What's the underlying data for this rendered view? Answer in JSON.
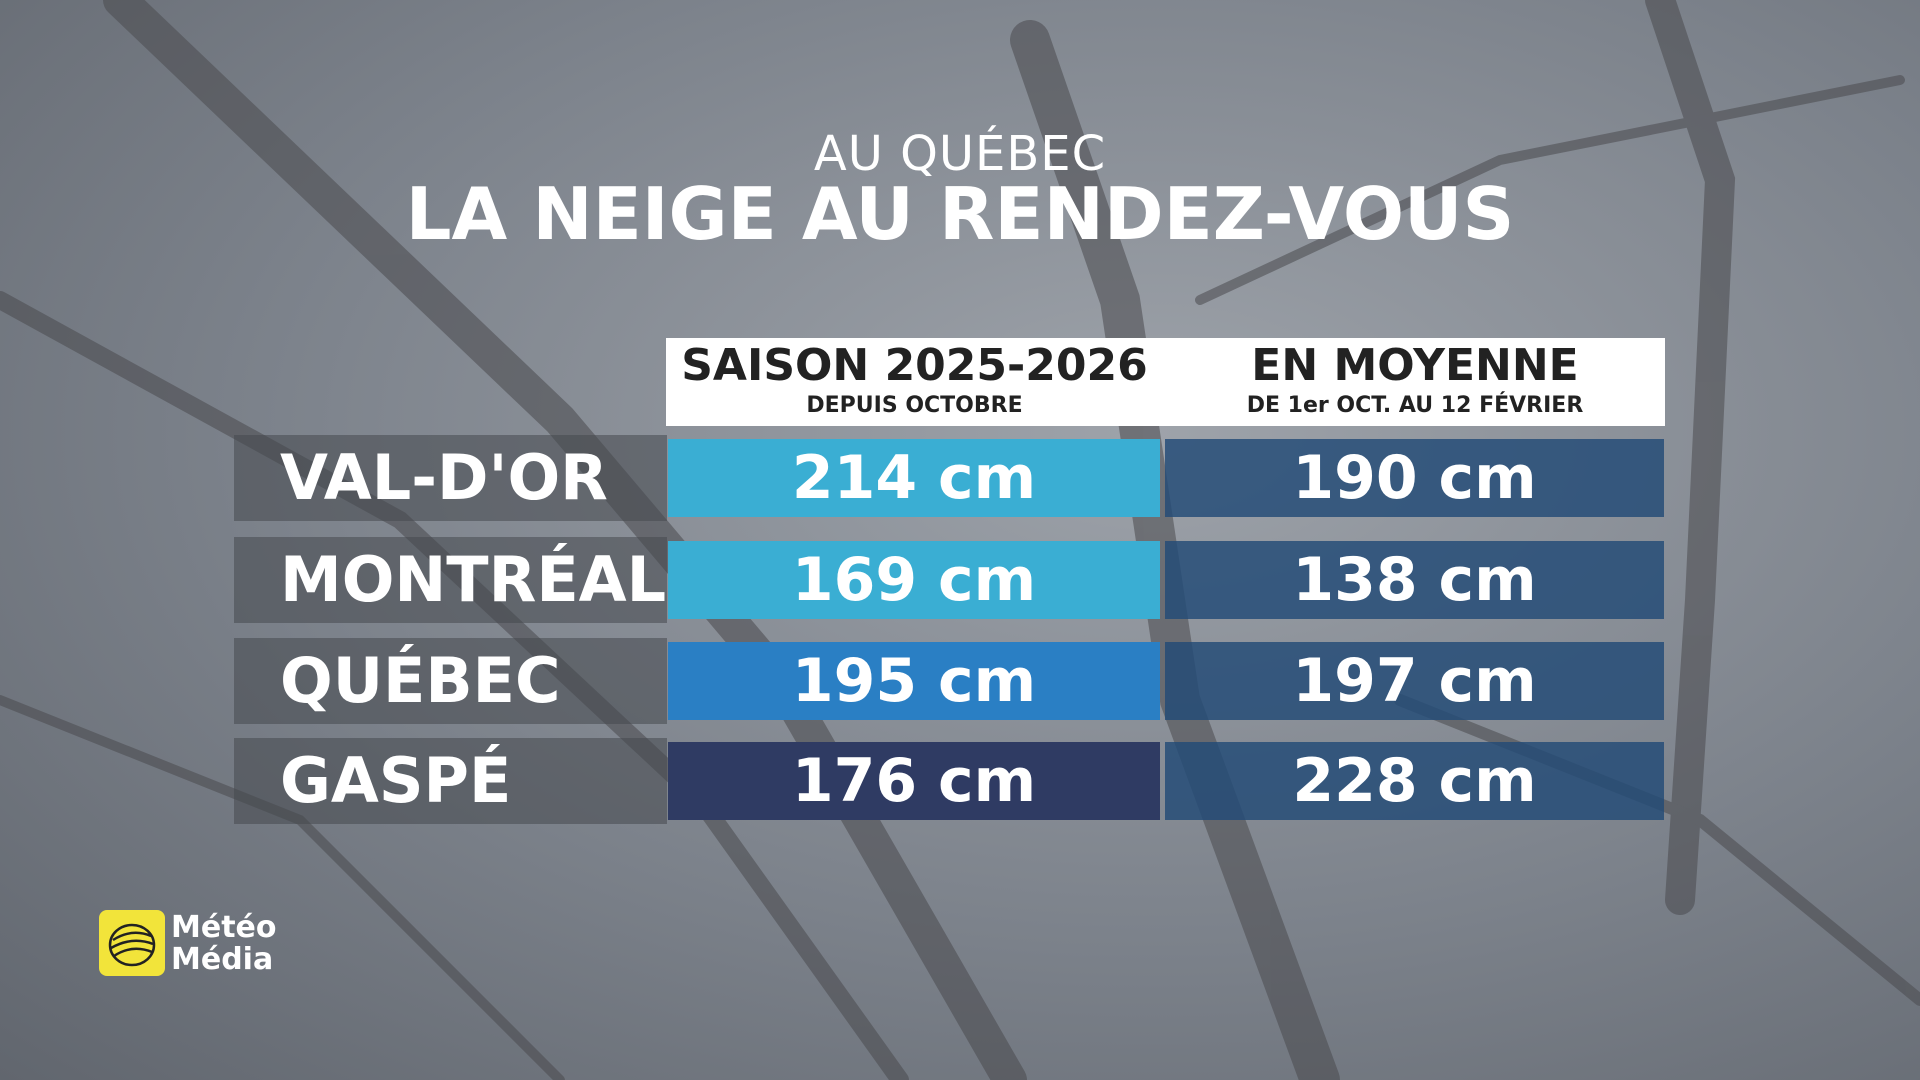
{
  "header": {
    "subtitle": "AU QUÉBEC",
    "title": "LA NEIGE AU RENDEZ-VOUS"
  },
  "table": {
    "columns": [
      {
        "title": "SAISON 2025-2026",
        "subtitle": "DEPUIS OCTOBRE"
      },
      {
        "title": "EN MOYENNE",
        "subtitle": "DE 1er OCT. AU 12 FÉVRIER"
      }
    ],
    "rows": [
      {
        "label": "VAL-D'OR",
        "values": [
          "214 cm",
          "190 cm"
        ],
        "color": "#3aaed3"
      },
      {
        "label": "MONTRÉAL",
        "values": [
          "169 cm",
          "138 cm"
        ],
        "color": "#3aaed3"
      },
      {
        "label": "QUÉBEC",
        "values": [
          "195 cm",
          "197 cm"
        ],
        "color": "#2a7fc4"
      },
      {
        "label": "GASPÉ",
        "values": [
          "176 cm",
          "228 cm"
        ],
        "color": "#2f3b63"
      }
    ]
  },
  "logo": {
    "line1": "Météo",
    "line2": "Média"
  }
}
